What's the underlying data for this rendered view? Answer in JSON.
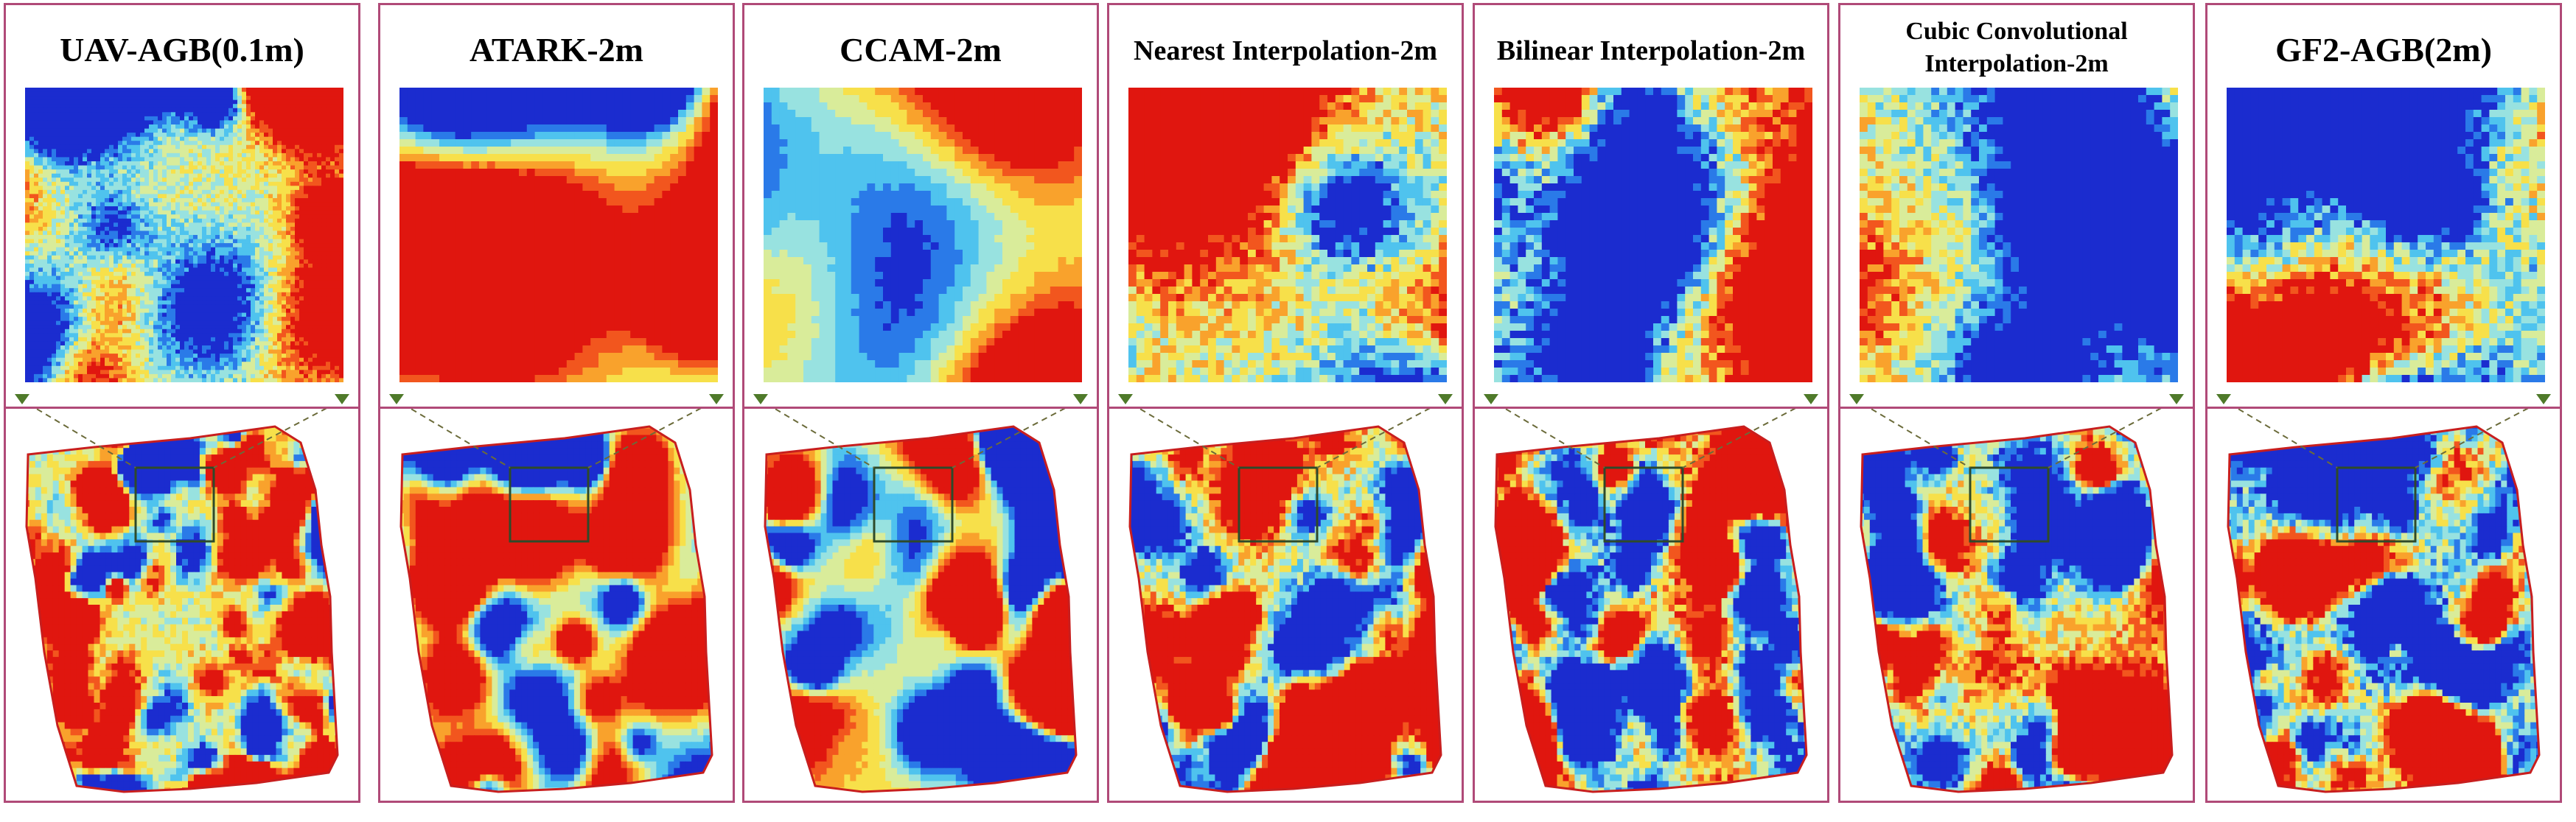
{
  "panels": [
    {
      "title": "UAV-AGB(0.1m)",
      "style": "fine"
    },
    {
      "title": "ATARK-2m",
      "style": "smooth"
    },
    {
      "title": "CCAM-2m",
      "style": "hot"
    },
    {
      "title": "Nearest Interpolation-2m",
      "style": "pixel"
    },
    {
      "title": "Bilinear Interpolation-2m",
      "style": "pixel2"
    },
    {
      "title": "Cubic Convolutional Interpolation-2m",
      "title_line1": "Cubic Convolutional",
      "title_line2": "Interpolation-2m",
      "style": "pixel3"
    },
    {
      "title": "GF2-AGB(2m)",
      "style": "cool"
    }
  ],
  "colors": {
    "frame": "#b04a78",
    "boundary": "#c81e1e",
    "inset_box": "#2e4a2a",
    "connector": "#6b6b3a",
    "marker": "#4f7a2a"
  },
  "colormap": [
    "#1b2ccf",
    "#2a7ae8",
    "#4fc3ee",
    "#98e2e0",
    "#d9ec9a",
    "#f7e04a",
    "#f9a22c",
    "#f2561e",
    "#e0160f"
  ]
}
